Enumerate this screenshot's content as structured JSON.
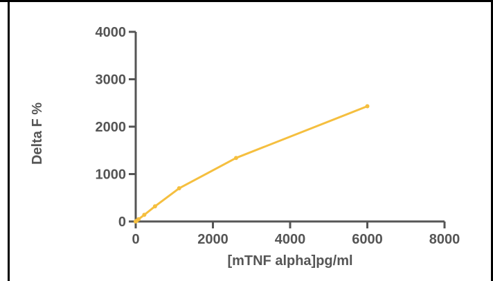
{
  "chart_data": {
    "type": "line",
    "xlabel": "[mTNF alpha]pg/ml",
    "ylabel": "Delta F %",
    "xlim": [
      0,
      8000
    ],
    "ylim": [
      0,
      4000
    ],
    "x_ticks": [
      "0",
      "2000",
      "4000",
      "6000",
      "8000"
    ],
    "y_ticks": [
      "0",
      "1000",
      "2000",
      "3000",
      "4000"
    ],
    "grid": false,
    "legend": "none",
    "series": [
      {
        "x": [
          0,
          24,
          74,
          222,
          500,
          1125,
          2600,
          6000
        ],
        "y": [
          0,
          16,
          48,
          140,
          320,
          700,
          1340,
          2430
        ]
      }
    ],
    "colors": {
      "series": "#F5BF3F",
      "axis": "#555555",
      "frame": "#000000"
    }
  }
}
